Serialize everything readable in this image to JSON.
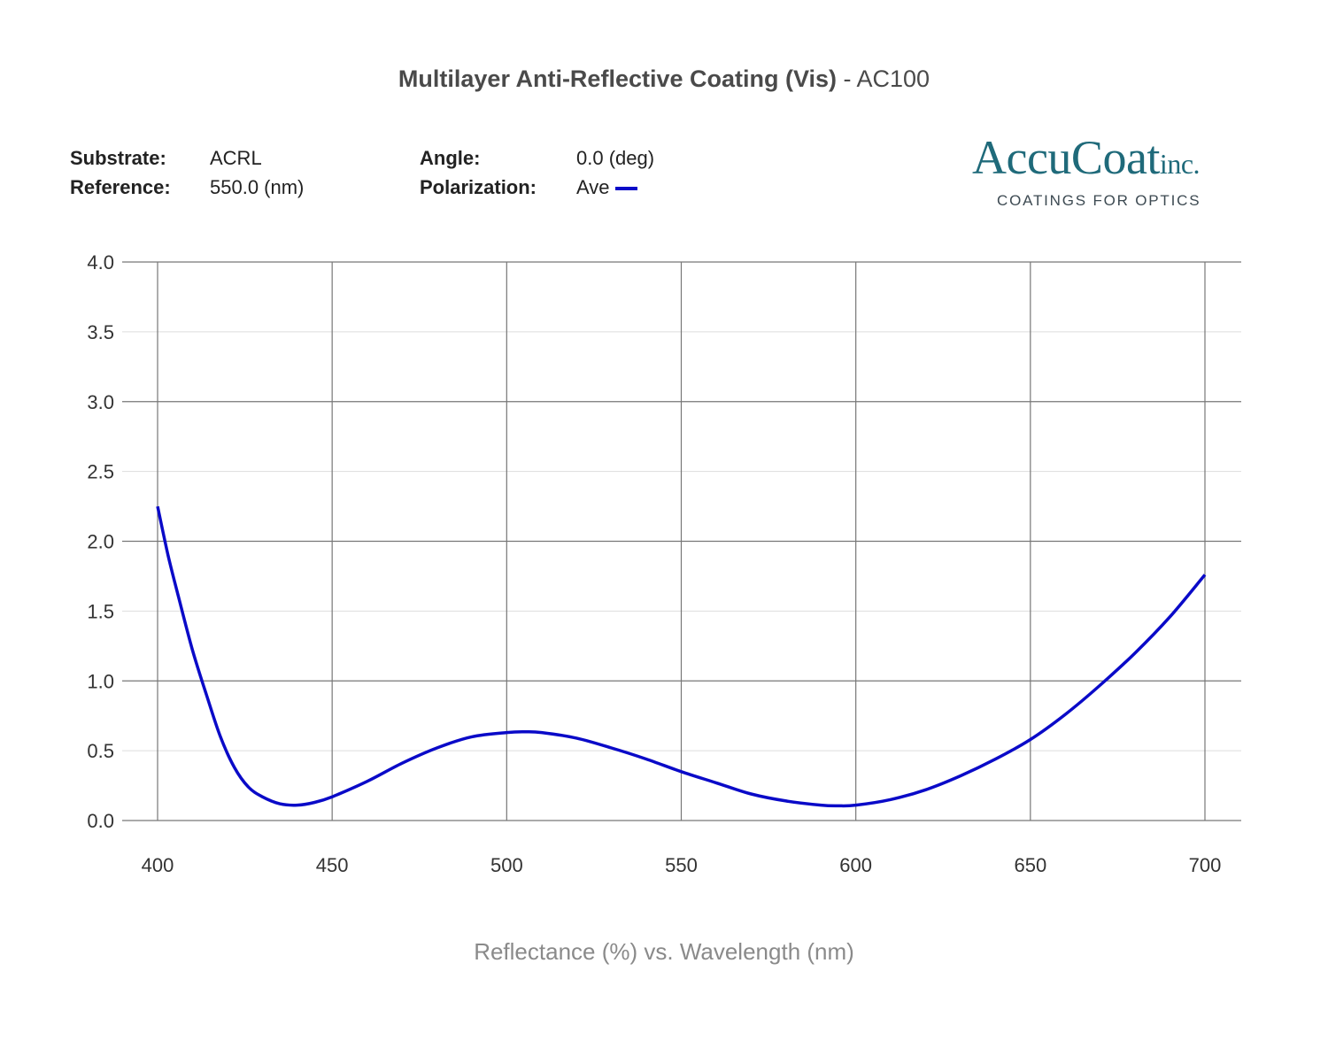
{
  "title": {
    "bold": "Multilayer Anti-Reflective Coating (Vis)",
    "rest": " - AC100"
  },
  "info": {
    "substrate_label": "Substrate:",
    "substrate_value": "ACRL",
    "reference_label": "Reference:",
    "reference_value": "550.0 (nm)",
    "angle_label": "Angle:",
    "angle_value": "0.0 (deg)",
    "polarization_label": "Polarization:",
    "polarization_value": "Ave"
  },
  "logo": {
    "name": "AccuCoat",
    "suffix": "inc.",
    "tagline": "COATINGS FOR OPTICS",
    "color": "#1f6a7a"
  },
  "colors": {
    "series": "#0a0ac8",
    "major_grid": "#777777",
    "minor_grid": "#dddddd"
  },
  "chart_data": {
    "type": "line",
    "title": "Multilayer Anti-Reflective Coating (Vis) - AC100",
    "xlabel": "Reflectance (%) vs. Wavelength (nm)",
    "ylabel": "",
    "xlim": [
      400,
      700
    ],
    "ylim": [
      0,
      4
    ],
    "x_ticks": [
      400,
      450,
      500,
      550,
      600,
      650,
      700
    ],
    "x_tick_labels": [
      "400",
      "450",
      "500",
      "550",
      "600",
      "650",
      "700"
    ],
    "y_ticks": [
      0,
      0.5,
      1,
      1.5,
      2,
      2.5,
      3,
      3.5,
      4
    ],
    "y_tick_labels": [
      "0.0",
      "0.5",
      "1.0",
      "1.5",
      "2.0",
      "2.5",
      "3.0",
      "3.5",
      "4.0"
    ],
    "grid": true,
    "series": [
      {
        "name": "Ave",
        "x": [
          400,
          403,
          406,
          410,
          414,
          418,
          422,
          426,
          430,
          435,
          440,
          445,
          450,
          460,
          470,
          480,
          490,
          500,
          505,
          510,
          520,
          530,
          540,
          550,
          560,
          570,
          580,
          590,
          595,
          600,
          610,
          620,
          630,
          640,
          650,
          660,
          670,
          680,
          690,
          700
        ],
        "y": [
          2.25,
          1.9,
          1.6,
          1.22,
          0.9,
          0.6,
          0.38,
          0.24,
          0.17,
          0.12,
          0.11,
          0.13,
          0.17,
          0.28,
          0.41,
          0.52,
          0.6,
          0.63,
          0.635,
          0.63,
          0.59,
          0.52,
          0.44,
          0.35,
          0.27,
          0.19,
          0.14,
          0.11,
          0.105,
          0.11,
          0.15,
          0.22,
          0.32,
          0.44,
          0.58,
          0.76,
          0.97,
          1.2,
          1.46,
          1.76
        ]
      }
    ]
  }
}
